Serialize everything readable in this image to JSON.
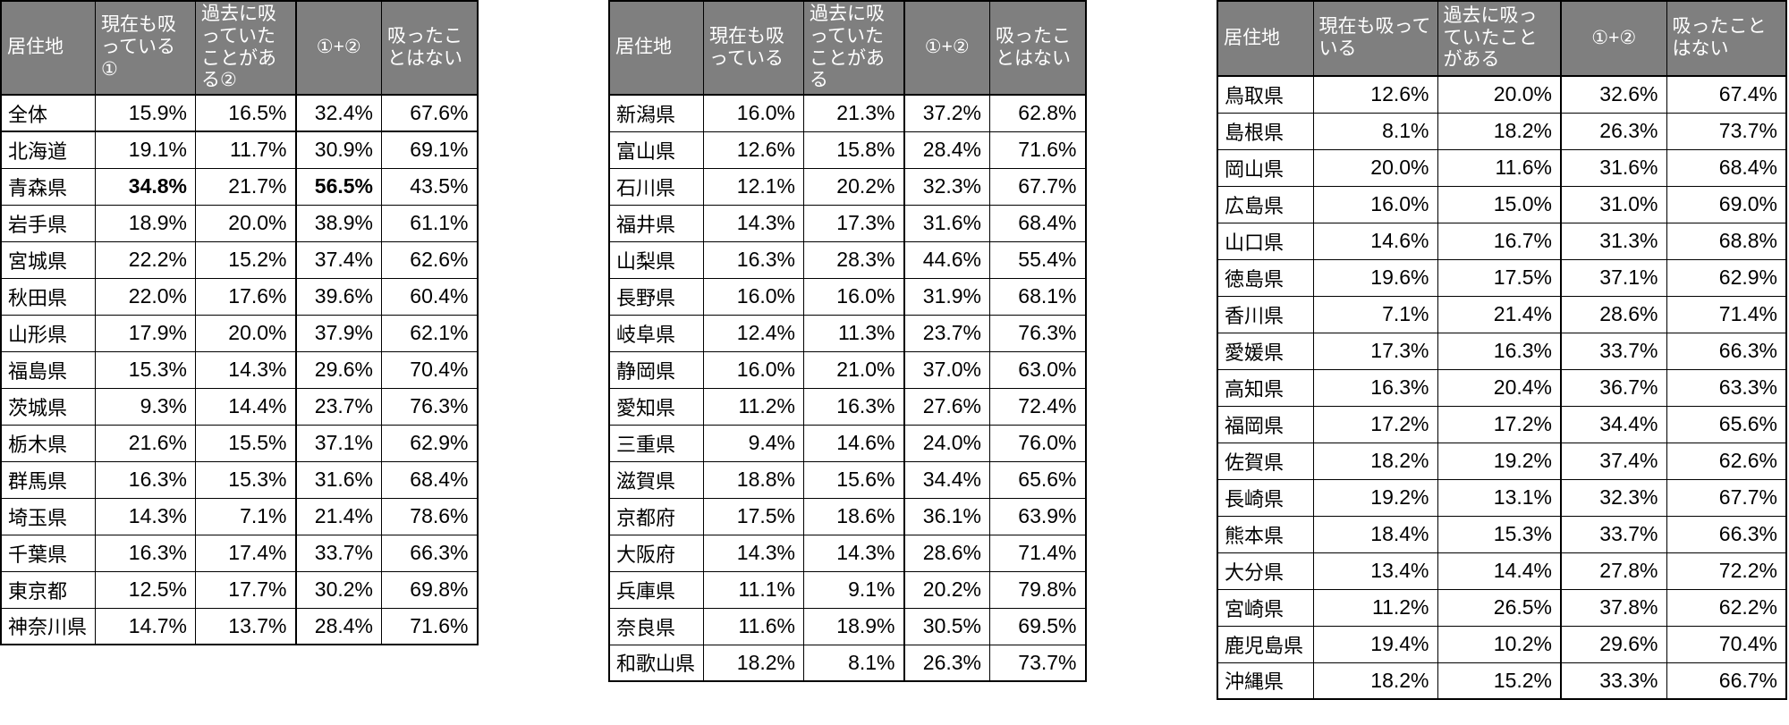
{
  "styles": {
    "header_bg": "#7f7f7f",
    "header_text": "#ffffff",
    "border_color": "#000000",
    "cell_bg": "#ffffff",
    "cell_text": "#000000"
  },
  "chart_data": [
    {
      "type": "table",
      "name": "smoking-by-residence-table-1",
      "columns": [
        "居住地",
        "現在も吸っている①",
        "過去に吸っていたことがある②",
        "①+②",
        "吸ったことはない"
      ],
      "rows": [
        [
          "全体",
          "15.9%",
          "16.5%",
          "32.4%",
          "67.6%"
        ],
        [
          "北海道",
          "19.1%",
          "11.7%",
          "30.9%",
          "69.1%"
        ],
        [
          "青森県",
          "34.8%",
          "21.7%",
          "56.5%",
          "43.5%"
        ],
        [
          "岩手県",
          "18.9%",
          "20.0%",
          "38.9%",
          "61.1%"
        ],
        [
          "宮城県",
          "22.2%",
          "15.2%",
          "37.4%",
          "62.6%"
        ],
        [
          "秋田県",
          "22.0%",
          "17.6%",
          "39.6%",
          "60.4%"
        ],
        [
          "山形県",
          "17.9%",
          "20.0%",
          "37.9%",
          "62.1%"
        ],
        [
          "福島県",
          "15.3%",
          "14.3%",
          "29.6%",
          "70.4%"
        ],
        [
          "茨城県",
          "9.3%",
          "14.4%",
          "23.7%",
          "76.3%"
        ],
        [
          "栃木県",
          "21.6%",
          "15.5%",
          "37.1%",
          "62.9%"
        ],
        [
          "群馬県",
          "16.3%",
          "15.3%",
          "31.6%",
          "68.4%"
        ],
        [
          "埼玉県",
          "14.3%",
          "7.1%",
          "21.4%",
          "78.6%"
        ],
        [
          "千葉県",
          "16.3%",
          "17.4%",
          "33.7%",
          "66.3%"
        ],
        [
          "東京都",
          "12.5%",
          "17.7%",
          "30.2%",
          "69.8%"
        ],
        [
          "神奈川県",
          "14.7%",
          "13.7%",
          "28.4%",
          "71.6%"
        ]
      ],
      "bold_cells": [
        [
          2,
          1
        ],
        [
          2,
          3
        ]
      ],
      "total_row_index": 0
    },
    {
      "type": "table",
      "name": "smoking-by-residence-table-2",
      "columns": [
        "居住地",
        "現在も吸っている",
        "過去に吸っていたことがある",
        "①+②",
        "吸ったことはない"
      ],
      "rows": [
        [
          "新潟県",
          "16.0%",
          "21.3%",
          "37.2%",
          "62.8%"
        ],
        [
          "富山県",
          "12.6%",
          "15.8%",
          "28.4%",
          "71.6%"
        ],
        [
          "石川県",
          "12.1%",
          "20.2%",
          "32.3%",
          "67.7%"
        ],
        [
          "福井県",
          "14.3%",
          "17.3%",
          "31.6%",
          "68.4%"
        ],
        [
          "山梨県",
          "16.3%",
          "28.3%",
          "44.6%",
          "55.4%"
        ],
        [
          "長野県",
          "16.0%",
          "16.0%",
          "31.9%",
          "68.1%"
        ],
        [
          "岐阜県",
          "12.4%",
          "11.3%",
          "23.7%",
          "76.3%"
        ],
        [
          "静岡県",
          "16.0%",
          "21.0%",
          "37.0%",
          "63.0%"
        ],
        [
          "愛知県",
          "11.2%",
          "16.3%",
          "27.6%",
          "72.4%"
        ],
        [
          "三重県",
          "9.4%",
          "14.6%",
          "24.0%",
          "76.0%"
        ],
        [
          "滋賀県",
          "18.8%",
          "15.6%",
          "34.4%",
          "65.6%"
        ],
        [
          "京都府",
          "17.5%",
          "18.6%",
          "36.1%",
          "63.9%"
        ],
        [
          "大阪府",
          "14.3%",
          "14.3%",
          "28.6%",
          "71.4%"
        ],
        [
          "兵庫県",
          "11.1%",
          "9.1%",
          "20.2%",
          "79.8%"
        ],
        [
          "奈良県",
          "11.6%",
          "18.9%",
          "30.5%",
          "69.5%"
        ],
        [
          "和歌山県",
          "18.2%",
          "8.1%",
          "26.3%",
          "73.7%"
        ]
      ],
      "bold_cells": [],
      "total_row_index": -1
    },
    {
      "type": "table",
      "name": "smoking-by-residence-table-3",
      "columns": [
        "居住地",
        "現在も吸っている",
        "過去に吸っていたことがある",
        "①+②",
        "吸ったことはない"
      ],
      "rows": [
        [
          "鳥取県",
          "12.6%",
          "20.0%",
          "32.6%",
          "67.4%"
        ],
        [
          "島根県",
          "8.1%",
          "18.2%",
          "26.3%",
          "73.7%"
        ],
        [
          "岡山県",
          "20.0%",
          "11.6%",
          "31.6%",
          "68.4%"
        ],
        [
          "広島県",
          "16.0%",
          "15.0%",
          "31.0%",
          "69.0%"
        ],
        [
          "山口県",
          "14.6%",
          "16.7%",
          "31.3%",
          "68.8%"
        ],
        [
          "徳島県",
          "19.6%",
          "17.5%",
          "37.1%",
          "62.9%"
        ],
        [
          "香川県",
          "7.1%",
          "21.4%",
          "28.6%",
          "71.4%"
        ],
        [
          "愛媛県",
          "17.3%",
          "16.3%",
          "33.7%",
          "66.3%"
        ],
        [
          "高知県",
          "16.3%",
          "20.4%",
          "36.7%",
          "63.3%"
        ],
        [
          "福岡県",
          "17.2%",
          "17.2%",
          "34.4%",
          "65.6%"
        ],
        [
          "佐賀県",
          "18.2%",
          "19.2%",
          "37.4%",
          "62.6%"
        ],
        [
          "長崎県",
          "19.2%",
          "13.1%",
          "32.3%",
          "67.7%"
        ],
        [
          "熊本県",
          "18.4%",
          "15.3%",
          "33.7%",
          "66.3%"
        ],
        [
          "大分県",
          "13.4%",
          "14.4%",
          "27.8%",
          "72.2%"
        ],
        [
          "宮崎県",
          "11.2%",
          "26.5%",
          "37.8%",
          "62.2%"
        ],
        [
          "鹿児島県",
          "19.4%",
          "10.2%",
          "29.6%",
          "70.4%"
        ],
        [
          "沖縄県",
          "18.2%",
          "15.2%",
          "33.3%",
          "66.7%"
        ]
      ],
      "bold_cells": [],
      "total_row_index": -1
    }
  ]
}
